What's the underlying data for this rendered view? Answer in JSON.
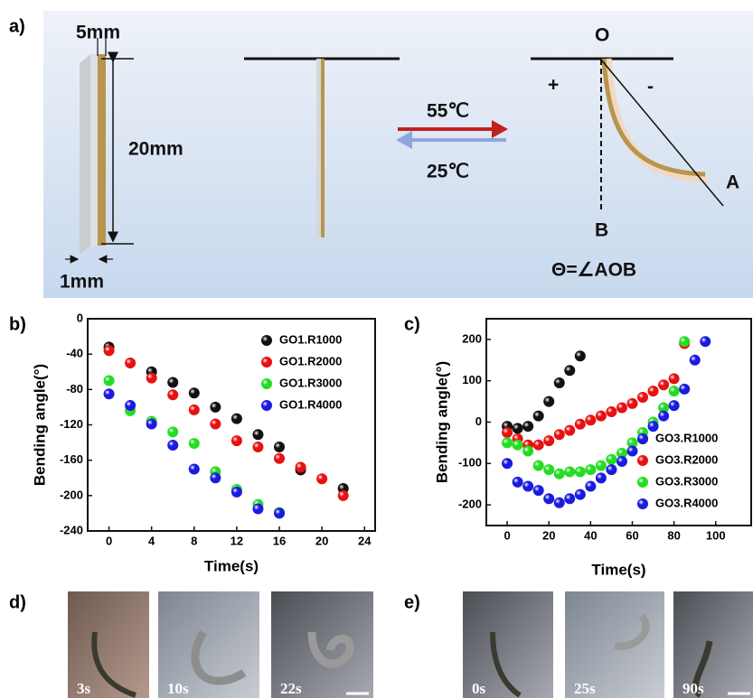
{
  "panel_labels": [
    "a)",
    "b)",
    "c)",
    "d)",
    "e)"
  ],
  "panel_a": {
    "width_label": "5mm",
    "length_label": "20mm",
    "thickness_label": "1mm",
    "heating_label": "55℃",
    "cooling_label": "25℃",
    "point_o": "O",
    "plus_sign": "+",
    "minus_sign": "-",
    "point_a": "A",
    "point_b": "B",
    "angle_definition": "Θ=∠AOB"
  },
  "chart_data": [
    {
      "type": "scatter",
      "x_label": "Time(s)",
      "y_label": "Bending angle(°)",
      "xlim": [
        -2,
        25
      ],
      "ylim": [
        -240,
        0
      ],
      "xticks": [
        0,
        4,
        8,
        12,
        16,
        20,
        24
      ],
      "yticks": [
        0,
        -40,
        -80,
        -120,
        -160,
        -200,
        -240
      ],
      "legend": "upper right",
      "series": [
        {
          "name": "GO1.R1000",
          "color": "#111111",
          "x": [
            0,
            4,
            6,
            8,
            10,
            12,
            14,
            16,
            18,
            22
          ],
          "values": [
            -32,
            -60,
            -72,
            -84,
            -100,
            -113,
            -131,
            -145,
            -171,
            -192
          ]
        },
        {
          "name": "GO1.R2000",
          "color": "#e81010",
          "x": [
            0,
            2,
            4,
            6,
            8,
            10,
            12,
            14,
            16,
            18,
            20,
            22
          ],
          "values": [
            -36,
            -50,
            -67,
            -86,
            -103,
            -119,
            -138,
            -145,
            -158,
            -168,
            -181,
            -200
          ]
        },
        {
          "name": "GO1.R3000",
          "color": "#22dd22",
          "x": [
            0,
            2,
            4,
            6,
            8,
            10,
            12,
            14,
            16
          ],
          "values": [
            -70,
            -104,
            -116,
            -128,
            -141,
            -173,
            -193,
            -210,
            -219
          ]
        },
        {
          "name": "GO1.R4000",
          "color": "#1a1ae0",
          "x": [
            0,
            2,
            4,
            6,
            8,
            10,
            12,
            14,
            16
          ],
          "values": [
            -85,
            -98,
            -119,
            -143,
            -170,
            -180,
            -196,
            -215,
            -220
          ]
        }
      ]
    },
    {
      "type": "scatter",
      "x_label": "Time(s)",
      "y_label": "Bending angle(°)",
      "xlim": [
        -10,
        117
      ],
      "ylim": [
        -250,
        250
      ],
      "xticks": [
        0,
        20,
        40,
        60,
        80,
        100
      ],
      "yticks": [
        -200,
        -100,
        0,
        100,
        200
      ],
      "legend": "lower right",
      "series": [
        {
          "name": "GO3.R1000",
          "color": "#111111",
          "x": [
            0,
            5,
            10,
            15,
            20,
            25,
            30,
            35
          ],
          "values": [
            -10,
            -15,
            -10,
            15,
            50,
            95,
            125,
            160
          ]
        },
        {
          "name": "GO3.R2000",
          "color": "#e81010",
          "x": [
            0,
            5,
            10,
            15,
            20,
            25,
            30,
            35,
            40,
            45,
            50,
            55,
            60,
            65,
            70,
            75,
            80,
            85
          ],
          "values": [
            -25,
            -40,
            -55,
            -55,
            -45,
            -30,
            -20,
            -5,
            5,
            15,
            25,
            35,
            45,
            60,
            75,
            90,
            105,
            190
          ]
        },
        {
          "name": "GO3.R3000",
          "color": "#22dd22",
          "x": [
            0,
            5,
            10,
            15,
            20,
            25,
            30,
            35,
            40,
            45,
            50,
            55,
            60,
            65,
            70,
            75,
            80,
            85
          ],
          "values": [
            -50,
            -55,
            -70,
            -105,
            -115,
            -125,
            -120,
            -120,
            -115,
            -105,
            -90,
            -75,
            -50,
            -25,
            0,
            35,
            75,
            195
          ]
        },
        {
          "name": "GO3.R4000",
          "color": "#1a1ae0",
          "x": [
            0,
            5,
            10,
            15,
            20,
            25,
            30,
            35,
            40,
            45,
            50,
            55,
            60,
            65,
            70,
            75,
            80,
            85,
            90,
            95
          ],
          "values": [
            -100,
            -145,
            -155,
            -165,
            -185,
            -195,
            -185,
            -175,
            -155,
            -135,
            -115,
            -95,
            -70,
            -40,
            -10,
            15,
            40,
            80,
            150,
            195
          ]
        }
      ]
    }
  ],
  "panel_d": {
    "times": [
      "3s",
      "10s",
      "22s"
    ]
  },
  "panel_e": {
    "times": [
      "0s",
      "25s",
      "90s"
    ]
  }
}
